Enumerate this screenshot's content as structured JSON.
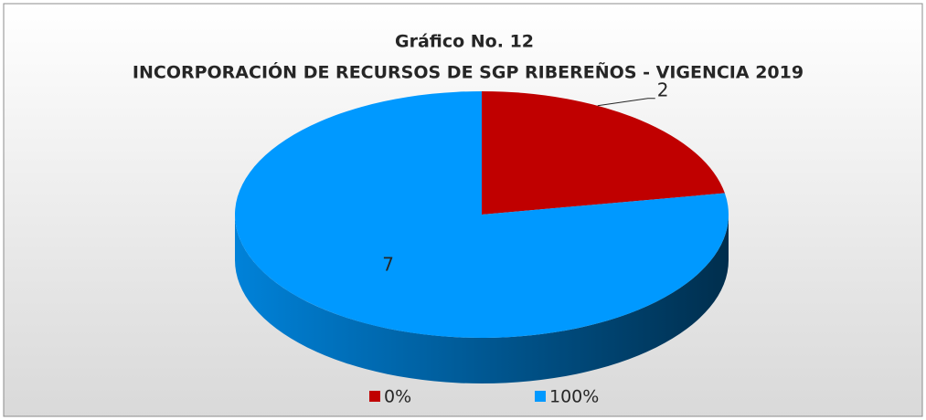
{
  "chart_data": {
    "type": "pie3d",
    "title": "Gráfico No. 12",
    "subtitle": "INCORPORACIÓN DE RECURSOS DE SGP RIBEREÑOS - VIGENCIA 2019",
    "categories": [
      "0%",
      "100%"
    ],
    "values": [
      2,
      7
    ],
    "colors": [
      "#c00000",
      "#0099ff"
    ],
    "legend": "bottom"
  }
}
